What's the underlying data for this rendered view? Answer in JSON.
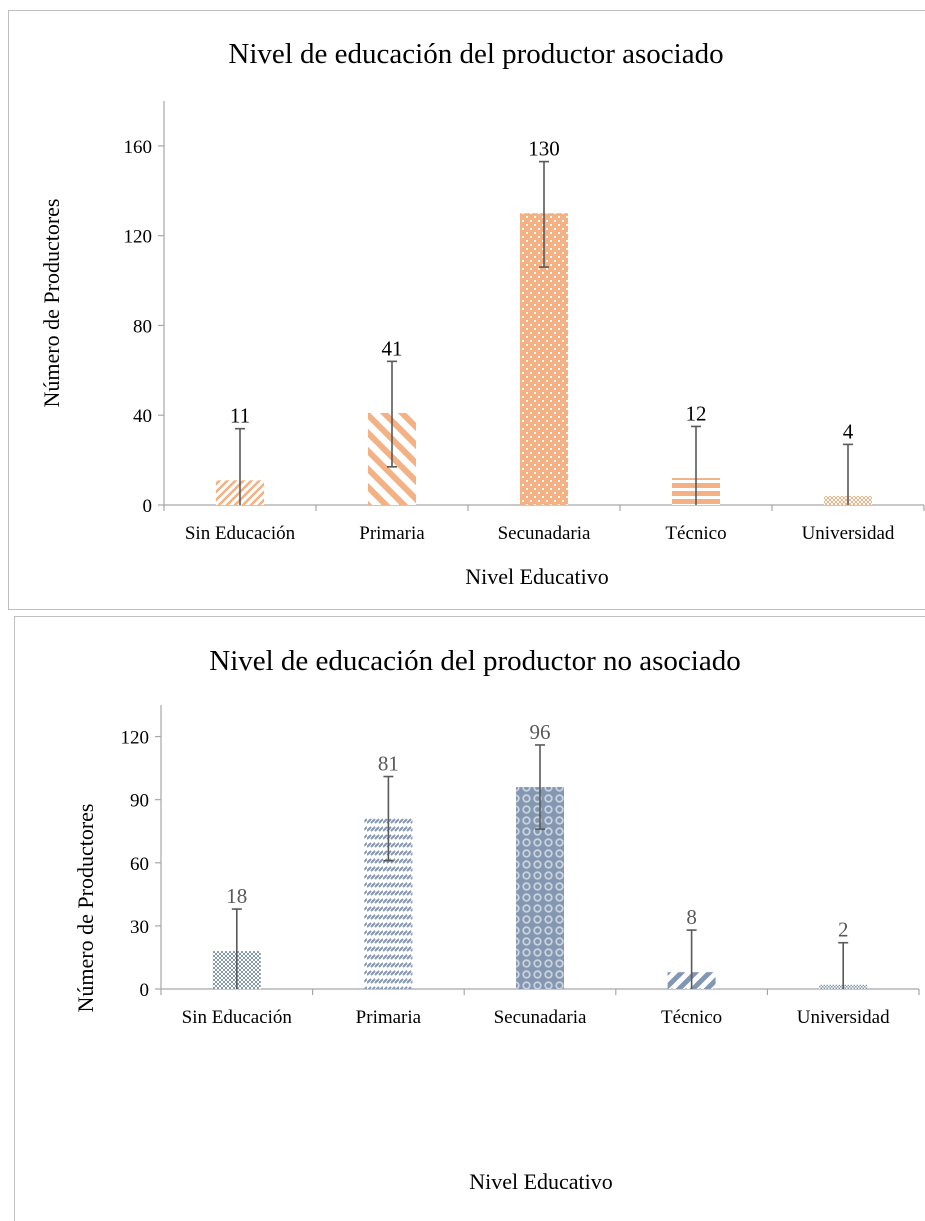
{
  "chart_data": [
    {
      "type": "bar",
      "title": "Nivel de educación del productor asociado",
      "xlabel": "Nivel Educativo",
      "ylabel": "Número de Productores",
      "categories": [
        "Sin Educación",
        "Primaria",
        "Secunadaria",
        "Técnico",
        "Universidad"
      ],
      "values": [
        11,
        41,
        130,
        12,
        4
      ],
      "data_labels": [
        "11",
        "41",
        "130",
        "12",
        "4"
      ],
      "error_bars": [
        {
          "low": 0,
          "high": 34
        },
        {
          "low": 17,
          "high": 64
        },
        {
          "low": 106,
          "high": 153
        },
        {
          "low": 0,
          "high": 35
        },
        {
          "low": 0,
          "high": 27
        }
      ],
      "ylim": [
        0,
        180
      ],
      "yticks": [
        "0",
        "40",
        "80",
        "120",
        "160"
      ],
      "ytick_values": [
        0,
        40,
        80,
        120,
        160
      ],
      "grid": false,
      "legend": "none",
      "color": "#f4b183",
      "patterns": [
        "light-diagonal-up",
        "wide-diagonal-down",
        "dots",
        "horizontal-stripes",
        "checker"
      ]
    },
    {
      "type": "bar",
      "title": "Nivel de educación del productor no asociado",
      "xlabel": "Nivel Educativo",
      "ylabel": "Número de Productores",
      "categories": [
        "Sin Educación",
        "Primaria",
        "Secunadaria",
        "Técnico",
        "Universidad"
      ],
      "values": [
        18,
        81,
        96,
        8,
        2
      ],
      "data_labels": [
        "18",
        "81",
        "96",
        "8",
        "2"
      ],
      "error_bars": [
        {
          "low": 0,
          "high": 38
        },
        {
          "low": 61,
          "high": 101
        },
        {
          "low": 76,
          "high": 116
        },
        {
          "low": 0,
          "high": 28
        },
        {
          "low": 0,
          "high": 22
        }
      ],
      "ylim": [
        0,
        135
      ],
      "yticks": [
        "0",
        "30",
        "60",
        "90",
        "120"
      ],
      "ytick_values": [
        0,
        30,
        60,
        90,
        120
      ],
      "grid": false,
      "legend": "none",
      "color": "#8497b0",
      "patterns": [
        "checker",
        "dashed-diagonal",
        "circles",
        "wide-diagonal-up",
        "small-checker"
      ]
    }
  ]
}
